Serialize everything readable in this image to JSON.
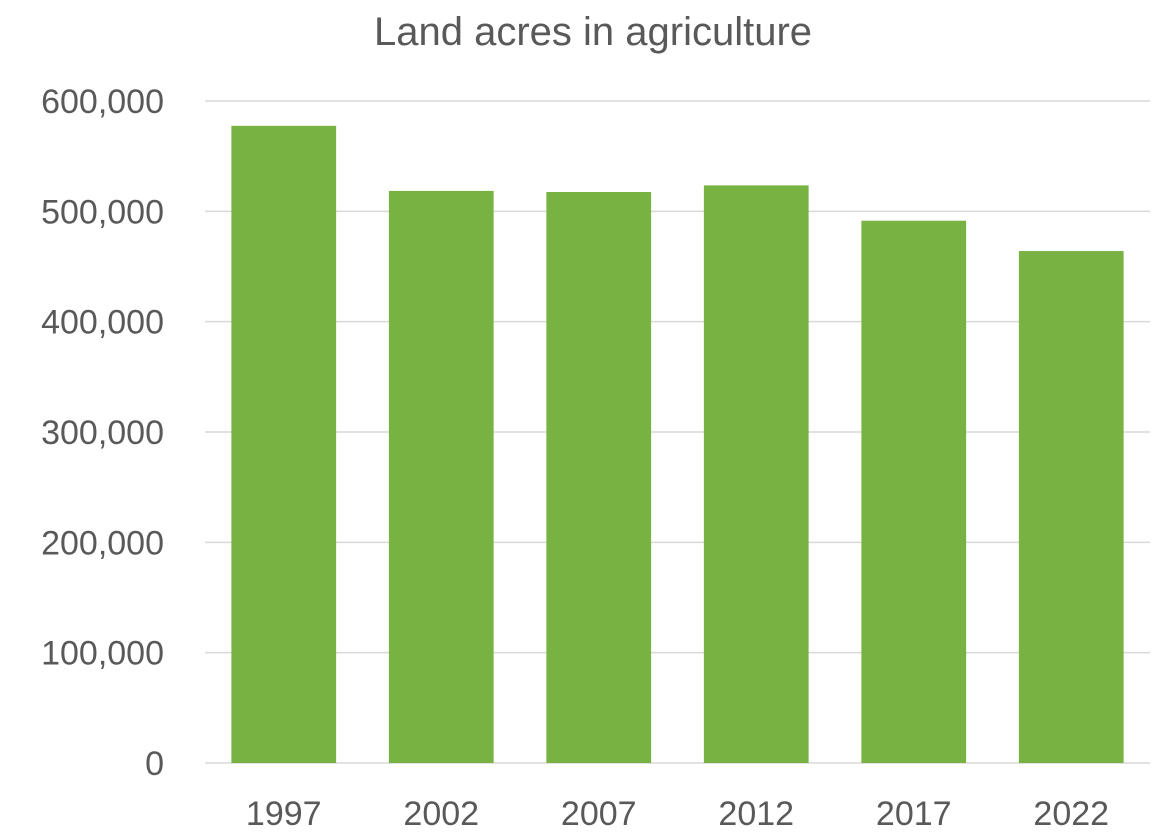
{
  "chart_data": {
    "type": "bar",
    "title": "Land acres in agriculture",
    "xlabel": "",
    "ylabel": "",
    "categories": [
      "1997",
      "2002",
      "2007",
      "2012",
      "2017",
      "2022"
    ],
    "values": [
      577500,
      518500,
      517500,
      523500,
      491500,
      464000
    ],
    "ylim": [
      0,
      600000
    ],
    "yticks": [
      0,
      100000,
      200000,
      300000,
      400000,
      500000,
      600000
    ],
    "ytick_labels": [
      "0",
      "100,000",
      "200,000",
      "300,000",
      "400,000",
      "500,000",
      "600,000"
    ],
    "grid": true,
    "legend": "none",
    "colors": {
      "bar": "#77B243",
      "grid": "#D9D9D9",
      "text": "#595959"
    }
  }
}
